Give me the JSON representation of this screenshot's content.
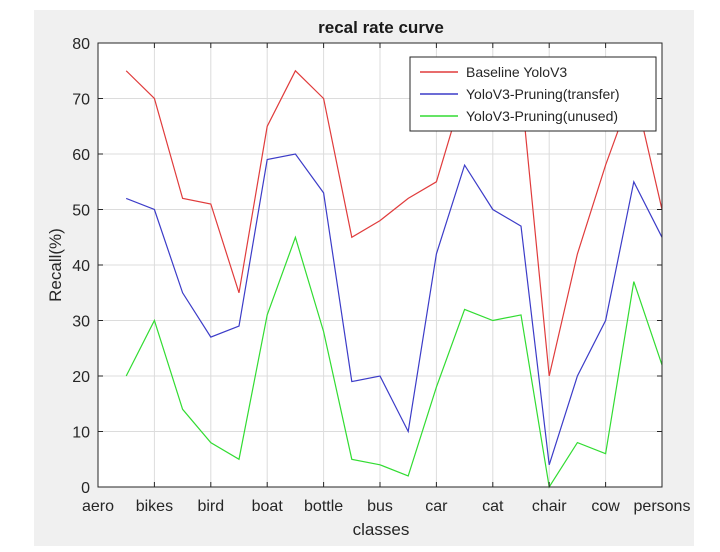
{
  "chart_data": {
    "type": "line",
    "title": "recal rate curve",
    "xlabel": "classes",
    "ylabel": "Recall(%)",
    "ylim": [
      0,
      80
    ],
    "yticks": [
      0,
      10,
      20,
      30,
      40,
      50,
      60,
      70,
      80
    ],
    "xlim": [
      0,
      20
    ],
    "xtick_positions": [
      0,
      2,
      4,
      6,
      8,
      10,
      12,
      14,
      16,
      18,
      20
    ],
    "xtick_labels": [
      "aero",
      "bikes",
      "bird",
      "boat",
      "bottle",
      "bus",
      "car",
      "cat",
      "chair",
      "cow",
      "persons"
    ],
    "grid": true,
    "legend_position": "top-right",
    "x": [
      1,
      2,
      3,
      4,
      5,
      6,
      7,
      8,
      9,
      10,
      11,
      12,
      13,
      14,
      15,
      16,
      17,
      18,
      19,
      20
    ],
    "series": [
      {
        "name": "Baseline YoloV3",
        "color": "#e03c3c",
        "values": [
          75,
          70,
          52,
          51,
          35,
          65,
          75,
          70,
          45,
          48,
          52,
          55,
          72,
          72,
          72,
          20,
          42,
          58,
          72,
          50
        ]
      },
      {
        "name": "YoloV3-Pruning(transfer)",
        "color": "#3c3cc8",
        "values": [
          52,
          50,
          35,
          27,
          29,
          59,
          60,
          53,
          19,
          20,
          10,
          42,
          58,
          50,
          47,
          4,
          20,
          30,
          55,
          45
        ]
      },
      {
        "name": "YoloV3-Pruning(unused)",
        "color": "#32dc32",
        "values": [
          20,
          30,
          14,
          8,
          5,
          31,
          45,
          28,
          5,
          4,
          2,
          18,
          32,
          30,
          31,
          0,
          8,
          6,
          37,
          22
        ]
      }
    ]
  }
}
